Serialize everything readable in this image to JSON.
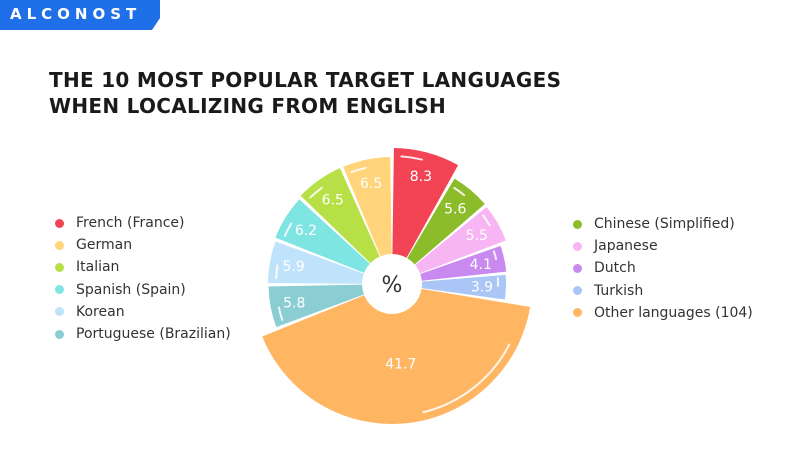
{
  "brand": {
    "name": "ALCONOST",
    "color": "#1e6fe8"
  },
  "title_lines": [
    "THE 10 MOST POPULAR TARGET LANGUAGES",
    "WHEN LOCALIZING FROM ENGLISH"
  ],
  "chart_data": {
    "type": "pie",
    "style": "exploded rose (radius varies)",
    "center_label": "%",
    "slices": [
      {
        "label": "French (France)",
        "value": 8.3,
        "color": "#f24455"
      },
      {
        "label": "Chinese (Simplified)",
        "value": 5.6,
        "color": "#8cbc2a"
      },
      {
        "label": "Japanese",
        "value": 5.5,
        "color": "#f8b5f3"
      },
      {
        "label": "Dutch",
        "value": 4.1,
        "color": "#c98af0"
      },
      {
        "label": "Turkish",
        "value": 3.9,
        "color": "#a9c6f7"
      },
      {
        "label": "Other languages (104)",
        "value": 41.7,
        "color": "#ffb663"
      },
      {
        "label": "Portuguese (Brazilian)",
        "value": 5.8,
        "color": "#8acdd3"
      },
      {
        "label": "Korean",
        "value": 5.9,
        "color": "#bfe3fb"
      },
      {
        "label": "Spanish (Spain)",
        "value": 6.2,
        "color": "#7fe5e3"
      },
      {
        "label": "Italian",
        "value": 6.5,
        "color": "#b7e046"
      },
      {
        "label": "German",
        "value": 6.5,
        "color": "#ffd47a"
      }
    ],
    "legend_left": [
      {
        "label": "French (France)",
        "color": "#f24455"
      },
      {
        "label": "German",
        "color": "#ffd47a"
      },
      {
        "label": "Italian",
        "color": "#b7e046"
      },
      {
        "label": "Spanish (Spain)",
        "color": "#7fe5e3"
      },
      {
        "label": "Korean",
        "color": "#bfe3fb"
      },
      {
        "label": "Portuguese (Brazilian)",
        "color": "#8acdd3"
      }
    ],
    "legend_right": [
      {
        "label": "Chinese (Simplified)",
        "color": "#8cbc2a"
      },
      {
        "label": "Japanese",
        "color": "#f8b5f3"
      },
      {
        "label": "Dutch",
        "color": "#c98af0"
      },
      {
        "label": "Turkish",
        "color": "#a9c6f7"
      },
      {
        "label": "Other languages (104)",
        "color": "#ffb663"
      }
    ]
  }
}
